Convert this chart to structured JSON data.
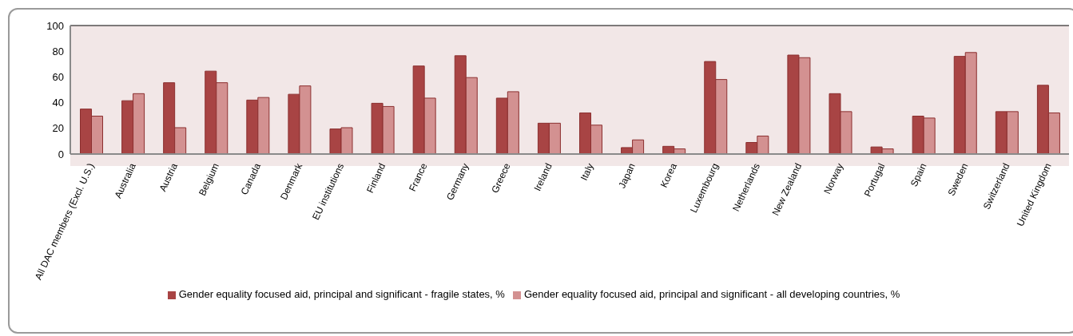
{
  "chart_data": {
    "type": "bar",
    "categories": [
      "All DAC members (Excl. U.S.)",
      "Australia",
      "Austria",
      "Belgium",
      "Canada",
      "Denmark",
      "EU institutions",
      "Finland",
      "France",
      "Germany",
      "Greece",
      "Ireland",
      "Italy",
      "Japan",
      "Korea",
      "Luxembourg",
      "Netherlands",
      "New Zealand",
      "Norway",
      "Portugal",
      "Spain",
      "Sweden",
      "Switzerland",
      "United Kingdom"
    ],
    "series": [
      {
        "name": "Gender equality focused aid, principal and significant - fragile states, %",
        "color": "#a84444",
        "values": [
          35,
          41.5,
          55.5,
          64.5,
          42,
          46.5,
          19.5,
          39.5,
          68.5,
          76.5,
          43.5,
          24,
          32,
          5,
          6,
          72,
          9,
          77,
          47,
          5.5,
          29.5,
          76,
          33,
          53.5
        ]
      },
      {
        "name": "Gender equality focused aid, principal and significant - all developing countries, %",
        "color": "#d39191",
        "values": [
          29.5,
          47,
          20.5,
          55.5,
          44,
          53,
          20.5,
          37,
          43.5,
          59.5,
          48.5,
          24,
          22.5,
          11,
          4,
          58,
          14,
          75,
          33,
          4,
          28,
          79,
          33,
          32
        ]
      }
    ],
    "ylim": [
      0,
      100
    ],
    "yticks": [
      0,
      20,
      40,
      60,
      80,
      100
    ],
    "grid": false,
    "legend": "bottom"
  }
}
